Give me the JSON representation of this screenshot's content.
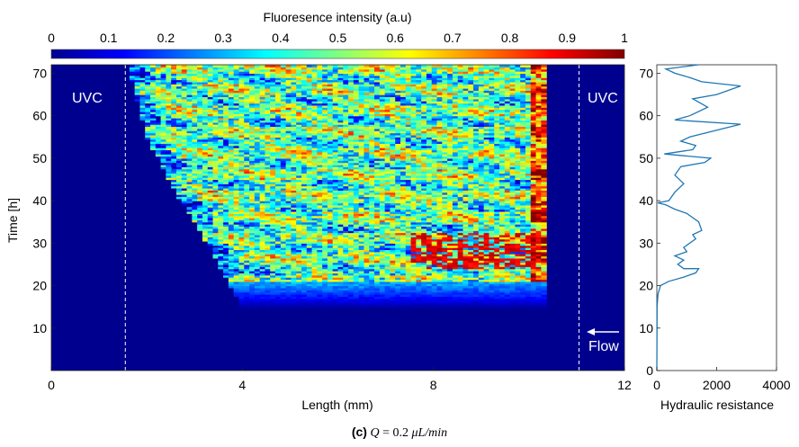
{
  "chart_data": [
    {
      "type": "heatmap",
      "title": "Fluoresence intensity (a.u)",
      "xlabel": "Length (mm)",
      "ylabel": "Time [h]",
      "xlim": [
        0,
        12
      ],
      "ylim": [
        0,
        72
      ],
      "x_ticks": [
        "0",
        "4",
        "8",
        "12"
      ],
      "y_ticks": [
        "10",
        "20",
        "30",
        "40",
        "50",
        "60",
        "70"
      ],
      "colorbar": {
        "min": 0,
        "max": 1,
        "colormap": "jet",
        "position": "top",
        "ticks": [
          "0",
          "0.1",
          "0.2",
          "0.3",
          "0.4",
          "0.5",
          "0.6",
          "0.7",
          "0.8",
          "0.9",
          "1"
        ]
      },
      "annotations": {
        "uvc_left": "UVC",
        "uvc_right": "UVC",
        "flow": "Flow"
      },
      "uvc_boundaries_mm": [
        1.55,
        11.05
      ],
      "channel_extent_mm": [
        1.6,
        10.4
      ],
      "growth_onset_h": 17,
      "growth_front": [
        {
          "time_h": 17,
          "x_mm": 3.9
        },
        {
          "time_h": 25,
          "x_mm": 3.5
        },
        {
          "time_h": 33,
          "x_mm": 3.1
        },
        {
          "time_h": 42,
          "x_mm": 2.6
        },
        {
          "time_h": 55,
          "x_mm": 2.0
        },
        {
          "time_h": 72,
          "x_mm": 1.6
        }
      ],
      "high_intensity_band": {
        "time_h": [
          24,
          32
        ],
        "x_mm": [
          7.5,
          10.2
        ],
        "value": 0.95
      }
    },
    {
      "type": "line",
      "xlabel": "Hydraulic resistance",
      "xlim": [
        0,
        4000
      ],
      "ylim": [
        0,
        72
      ],
      "x_ticks": [
        "0",
        "2000",
        "4000"
      ],
      "y_ticks": [
        "0",
        "10",
        "20",
        "30",
        "40",
        "50",
        "60",
        "70"
      ],
      "color": "#1f77b4",
      "points": [
        [
          0,
          0
        ],
        [
          5,
          10
        ],
        [
          10,
          15
        ],
        [
          40,
          18
        ],
        [
          120,
          20
        ],
        [
          400,
          21
        ],
        [
          900,
          22
        ],
        [
          1300,
          23
        ],
        [
          1400,
          24
        ],
        [
          900,
          24
        ],
        [
          700,
          25
        ],
        [
          900,
          26
        ],
        [
          600,
          27
        ],
        [
          1000,
          28
        ],
        [
          900,
          29
        ],
        [
          1300,
          31
        ],
        [
          1200,
          32
        ],
        [
          1500,
          33
        ],
        [
          1400,
          35
        ],
        [
          1200,
          36
        ],
        [
          1000,
          37
        ],
        [
          600,
          38
        ],
        [
          300,
          39
        ],
        [
          30,
          39.5
        ],
        [
          400,
          40
        ],
        [
          600,
          42
        ],
        [
          900,
          44
        ],
        [
          600,
          46
        ],
        [
          800,
          48
        ],
        [
          1600,
          49
        ],
        [
          1800,
          50
        ],
        [
          250,
          51
        ],
        [
          1200,
          52
        ],
        [
          1300,
          53
        ],
        [
          800,
          54
        ],
        [
          1100,
          55
        ],
        [
          2800,
          58
        ],
        [
          600,
          59
        ],
        [
          1100,
          60
        ],
        [
          1700,
          62
        ],
        [
          1200,
          64
        ],
        [
          2000,
          65
        ],
        [
          2800,
          67
        ],
        [
          1500,
          68
        ],
        [
          1100,
          69
        ],
        [
          600,
          70
        ],
        [
          300,
          71
        ],
        [
          1400,
          72
        ]
      ]
    }
  ],
  "caption": {
    "label": "(c)",
    "var": "Q",
    "eq": "=",
    "val": "0.2",
    "mu": "μ",
    "unit": "L/min"
  }
}
